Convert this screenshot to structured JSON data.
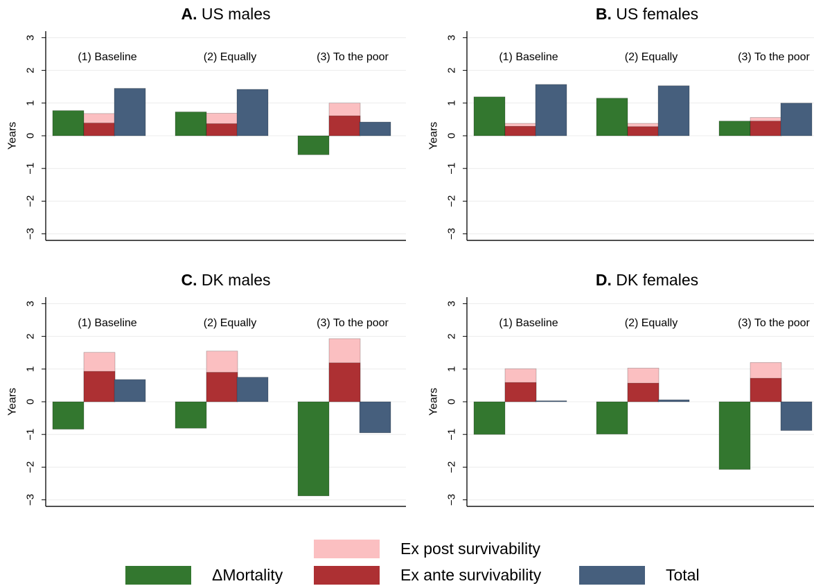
{
  "chart_data": [
    {
      "type": "bar",
      "panel_letter": "A.",
      "title": "US males",
      "ylabel": "Years",
      "ylim": [
        -3.2,
        3.2
      ],
      "yticks": [
        -3,
        -2,
        -1,
        0,
        1,
        2,
        3
      ],
      "grid": true,
      "groups": [
        "(1) Baseline",
        "(2) Equally",
        "(3) To the poor"
      ],
      "series": [
        {
          "name": "ΔMortality",
          "values": [
            0.77,
            0.73,
            -0.58
          ]
        },
        {
          "name": "Ex ante survivability",
          "values": [
            0.39,
            0.37,
            0.61
          ]
        },
        {
          "name": "Ex post survivability",
          "values": [
            0.68,
            0.69,
            1.0
          ]
        },
        {
          "name": "Total",
          "values": [
            1.45,
            1.42,
            0.42
          ]
        }
      ]
    },
    {
      "type": "bar",
      "panel_letter": "B.",
      "title": "US females",
      "ylabel": "Years",
      "ylim": [
        -3.2,
        3.2
      ],
      "yticks": [
        -3,
        -2,
        -1,
        0,
        1,
        2,
        3
      ],
      "grid": true,
      "groups": [
        "(1) Baseline",
        "(2) Equally",
        "(3) To the poor"
      ],
      "series": [
        {
          "name": "ΔMortality",
          "values": [
            1.19,
            1.15,
            0.45
          ]
        },
        {
          "name": "Ex ante survivability",
          "values": [
            0.29,
            0.28,
            0.45
          ]
        },
        {
          "name": "Ex post survivability",
          "values": [
            0.38,
            0.38,
            0.56
          ]
        },
        {
          "name": "Total",
          "values": [
            1.57,
            1.53,
            1.0
          ]
        }
      ]
    },
    {
      "type": "bar",
      "panel_letter": "C.",
      "title": "DK males",
      "ylabel": "Years",
      "ylim": [
        -3.2,
        3.2
      ],
      "yticks": [
        -3,
        -2,
        -1,
        0,
        1,
        2,
        3
      ],
      "grid": true,
      "groups": [
        "(1) Baseline",
        "(2) Equally",
        "(3) To the poor"
      ],
      "series": [
        {
          "name": "ΔMortality",
          "values": [
            -0.84,
            -0.81,
            -2.88
          ]
        },
        {
          "name": "Ex ante survivability",
          "values": [
            0.93,
            0.9,
            1.19
          ]
        },
        {
          "name": "Ex post survivability",
          "values": [
            1.51,
            1.55,
            1.93
          ]
        },
        {
          "name": "Total",
          "values": [
            0.68,
            0.75,
            -0.95
          ]
        }
      ]
    },
    {
      "type": "bar",
      "panel_letter": "D.",
      "title": "DK females",
      "ylabel": "Years",
      "ylim": [
        -3.2,
        3.2
      ],
      "yticks": [
        -3,
        -2,
        -1,
        0,
        1,
        2,
        3
      ],
      "grid": true,
      "groups": [
        "(1) Baseline",
        "(2) Equally",
        "(3) To the poor"
      ],
      "series": [
        {
          "name": "ΔMortality",
          "values": [
            -1.0,
            -0.99,
            -2.07
          ]
        },
        {
          "name": "Ex ante survivability",
          "values": [
            0.59,
            0.57,
            0.72
          ]
        },
        {
          "name": "Ex post survivability",
          "values": [
            1.01,
            1.03,
            1.2
          ]
        },
        {
          "name": "Total",
          "values": [
            0.03,
            0.06,
            -0.88
          ]
        }
      ]
    }
  ],
  "legend": {
    "ex_post": "Ex post survivability",
    "mortality": "ΔMortality",
    "ex_ante": "Ex ante survivability",
    "total": "Total"
  },
  "colors": {
    "mortality": "#33772f",
    "ex_ante": "#ad3033",
    "ex_post": "#fbbfc1",
    "total": "#465f7d",
    "grid": "#ececec",
    "axis": "#000000"
  }
}
